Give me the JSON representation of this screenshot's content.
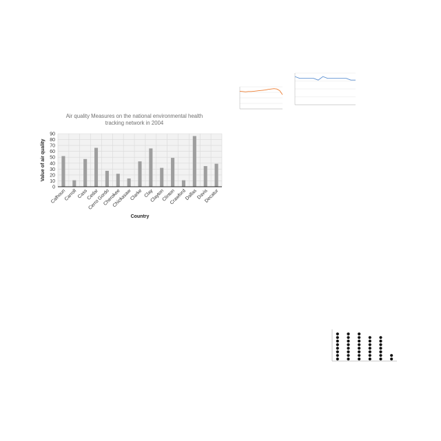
{
  "chart_data": [
    {
      "type": "bar",
      "title_lines": [
        "Air quality Measures on the national environmental health",
        "tracking network in 2004"
      ],
      "xlabel": "Country",
      "ylabel": "Value of air quality",
      "ylim": [
        0,
        90
      ],
      "yticks": [
        0,
        10,
        20,
        30,
        40,
        50,
        60,
        70,
        80,
        90
      ],
      "grid": true,
      "categories": [
        "Calhoun",
        "Carroll",
        "Cass",
        "Cedar",
        "Cerro Gordo",
        "Cherokee",
        "Chickasaw",
        "Clarke",
        "Clay",
        "Clayton",
        "Clinton",
        "Crawford",
        "Dallas",
        "Davis",
        "Decatur"
      ],
      "values": [
        52,
        11,
        47,
        66,
        27,
        22,
        14,
        43,
        65,
        32,
        49,
        11,
        86,
        35,
        39
      ],
      "colors": {
        "bar": "#9e9e9e",
        "grid": "#d9d9d9",
        "plot_bg": "#f2f2f2",
        "title": "#6f6f6f"
      }
    },
    {
      "type": "line",
      "values": [
        56,
        55,
        54,
        55,
        55,
        56,
        57,
        58,
        59,
        60,
        62,
        63,
        64,
        63,
        58,
        45
      ],
      "ylim": [
        0,
        70
      ],
      "colors": {
        "line": "#ed7d31",
        "grid": "#e0e0e0"
      }
    },
    {
      "type": "line",
      "values": [
        80,
        75,
        75,
        75,
        75,
        70,
        80,
        75,
        75,
        75,
        75,
        75,
        70,
        70
      ],
      "ylim": [
        0,
        90
      ],
      "colors": {
        "line": "#5b8fd1",
        "grid": "#e0e0e0"
      }
    },
    {
      "type": "scatter",
      "counts": [
        8,
        8,
        8,
        7,
        7,
        2
      ],
      "colors": {
        "dot": "#111111",
        "axis": "#777777"
      }
    }
  ]
}
